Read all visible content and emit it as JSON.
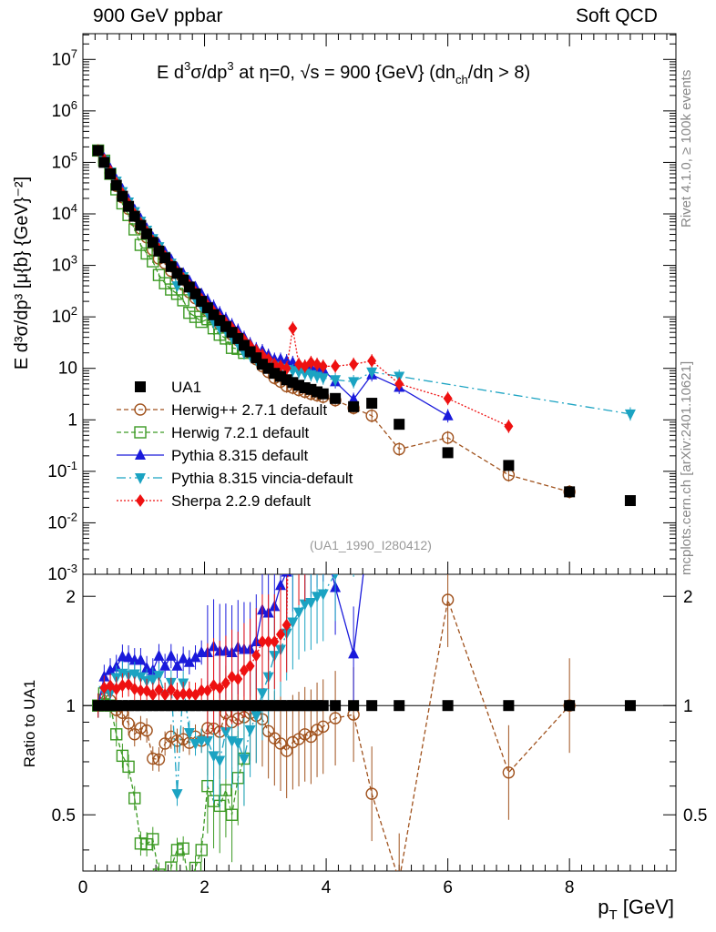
{
  "header": {
    "left": "900 GeV ppbar",
    "right": "Soft QCD",
    "side_rivet": "Rivet 4.1.0, ≥ 100k events",
    "side_mcplots": "mcplots.cern.ch [arXiv:2401.10621]"
  },
  "chart_data": {
    "type": "scatter",
    "title": "E  d³σ/dp³ at η=0, √s = 900 {GeV} (dn_ch/dη > 8)",
    "title_parts": {
      "prefix": "E   d",
      "sup3": "3",
      "mid": "σ/dp",
      "sup3b": "3",
      "rest": " at η=0, √s = 900 {GeV} (dn",
      "sub_ch": "ch",
      "end": "/dη > 8)"
    },
    "ylabel": "E d³σ/dp³ [μ{b} {GeV}⁻²]",
    "ratio_ylabel": "Ratio to UA1",
    "xlabel": "p_T [GeV]",
    "xlabel_main": "p",
    "xlabel_sub": "T",
    "xlabel_unit": " [GeV]",
    "watermark": "(UA1_1990_I280412)",
    "xlim": [
      0,
      9.75
    ],
    "ylim_log10": [
      -3,
      7.5
    ],
    "ratio_ylim": [
      0.35,
      2.3
    ],
    "x_ticks": [
      "0",
      "2",
      "4",
      "6",
      "8"
    ],
    "ratio_ticks": [
      "0.5",
      "1",
      "2"
    ],
    "legend": [
      {
        "name": "UA1",
        "color": "#000000",
        "marker": "square"
      },
      {
        "name": "Herwig++ 2.7.1 default",
        "color": "#a0521d",
        "marker": "circle-open"
      },
      {
        "name": "Herwig 7.2.1 default",
        "color": "#3c9a24",
        "marker": "square-open"
      },
      {
        "name": "Pythia 8.315 default",
        "color": "#1a1adb",
        "marker": "triangle-up"
      },
      {
        "name": "Pythia 8.315 vincia-default",
        "color": "#1ba3c2",
        "marker": "triangle-down"
      },
      {
        "name": "Sherpa 2.2.9 default",
        "color": "#ee1111",
        "marker": "diamond"
      }
    ],
    "series": [
      {
        "name": "UA1",
        "x": [
          0.25,
          0.35,
          0.45,
          0.55,
          0.65,
          0.75,
          0.85,
          0.95,
          1.05,
          1.15,
          1.25,
          1.35,
          1.45,
          1.55,
          1.65,
          1.75,
          1.85,
          1.95,
          2.05,
          2.15,
          2.25,
          2.35,
          2.45,
          2.55,
          2.65,
          2.75,
          2.85,
          2.95,
          3.05,
          3.15,
          3.25,
          3.35,
          3.45,
          3.55,
          3.65,
          3.75,
          3.85,
          3.95,
          4.15,
          4.45,
          4.75,
          5.2,
          6.0,
          7.0,
          8.0,
          9.0
        ],
        "y": [
          170000,
          100000,
          60000,
          36000,
          22000,
          14000,
          9000,
          6000,
          4100,
          2800,
          1900,
          1400,
          950,
          700,
          520,
          380,
          280,
          200,
          150,
          110,
          85,
          65,
          50,
          38,
          28,
          21,
          16,
          12,
          10,
          8,
          7,
          6,
          5.3,
          4.7,
          4.2,
          3.9,
          3.5,
          3.2,
          2.6,
          1.8,
          2.1,
          0.82,
          0.23,
          0.13,
          0.04,
          0.027
        ]
      },
      {
        "name": "Herwig++ 2.7.1 default",
        "x": [
          0.25,
          0.35,
          0.45,
          0.55,
          0.65,
          0.75,
          0.85,
          0.95,
          1.05,
          1.15,
          1.25,
          1.35,
          1.45,
          1.55,
          1.65,
          1.75,
          1.85,
          1.95,
          2.05,
          2.15,
          2.25,
          2.35,
          2.45,
          2.55,
          2.65,
          2.75,
          2.85,
          2.95,
          3.05,
          3.15,
          3.25,
          3.35,
          3.45,
          3.55,
          3.65,
          3.75,
          3.85,
          3.95,
          4.15,
          4.45,
          4.75,
          5.2,
          6.0,
          7.0,
          8.0
        ],
        "y": [
          170000,
          105000,
          62000,
          35000,
          21000,
          12500,
          7500,
          5200,
          3500,
          2000,
          1350,
          1100,
          780,
          560,
          420,
          300,
          230,
          160,
          130,
          95,
          72,
          62,
          45,
          35,
          26,
          20,
          15,
          11,
          8.5,
          6.5,
          5.5,
          4.5,
          4.2,
          3.8,
          3.5,
          3.2,
          3.0,
          2.8,
          2.4,
          1.7,
          1.2,
          0.27,
          0.45,
          0.085,
          0.04
        ]
      },
      {
        "name": "Herwig 7.2.1 default",
        "x": [
          0.25,
          0.35,
          0.45,
          0.55,
          0.65,
          0.75,
          0.85,
          0.95,
          1.05,
          1.15,
          1.25,
          1.35,
          1.45,
          1.55,
          1.65,
          1.75,
          1.85,
          1.95,
          2.05,
          2.15,
          2.25,
          2.35,
          2.45,
          2.55,
          2.65
        ],
        "y": [
          170000,
          108000,
          60000,
          30000,
          16000,
          9500,
          5000,
          2500,
          1700,
          1200,
          650,
          450,
          340,
          280,
          210,
          120,
          100,
          80,
          90,
          60,
          45,
          38,
          25,
          24,
          20
        ]
      },
      {
        "name": "Pythia 8.315 default",
        "x": [
          0.25,
          0.35,
          0.45,
          0.55,
          0.65,
          0.75,
          0.85,
          0.95,
          1.05,
          1.15,
          1.25,
          1.35,
          1.45,
          1.55,
          1.65,
          1.75,
          1.85,
          1.95,
          2.05,
          2.15,
          2.25,
          2.35,
          2.45,
          2.55,
          2.65,
          2.75,
          2.85,
          2.95,
          3.05,
          3.15,
          3.25,
          3.35,
          3.45,
          3.55,
          3.65,
          3.75,
          3.85,
          3.95,
          4.15,
          4.45,
          4.75,
          5.2,
          6.0
        ],
        "y": [
          170000,
          120000,
          75000,
          46000,
          30000,
          19000,
          12000,
          8000,
          5200,
          3500,
          2600,
          1800,
          1300,
          900,
          700,
          500,
          380,
          280,
          210,
          160,
          120,
          92,
          70,
          55,
          40,
          30,
          24,
          22,
          18,
          15,
          15,
          14,
          13,
          12,
          11,
          10.5,
          10,
          9.5,
          5.5,
          2.5,
          7.5,
          4.3,
          1.2
        ]
      },
      {
        "name": "Pythia 8.315 vincia-default",
        "x": [
          0.25,
          0.35,
          0.45,
          0.55,
          0.65,
          0.75,
          0.85,
          0.95,
          1.05,
          1.15,
          1.25,
          1.35,
          1.45,
          1.55,
          1.65,
          1.75,
          1.85,
          1.95,
          2.05,
          2.15,
          2.25,
          2.35,
          2.45,
          2.55,
          2.65,
          2.75,
          2.85,
          2.95,
          3.05,
          3.15,
          3.25,
          3.35,
          3.45,
          3.55,
          3.65,
          3.75,
          3.85,
          3.95,
          4.15,
          4.45,
          4.75,
          5.2,
          9.0
        ],
        "y": [
          170000,
          110000,
          65000,
          43000,
          27000,
          17000,
          11000,
          7200,
          4800,
          3300,
          2300,
          1500,
          1100,
          400,
          600,
          320,
          220,
          160,
          120,
          80,
          60,
          55,
          40,
          30,
          20,
          18,
          15,
          13,
          12,
          11,
          10,
          9.5,
          9,
          8.5,
          8,
          7.5,
          7,
          6.5,
          6,
          5.5,
          8.5,
          7,
          1.3
        ]
      },
      {
        "name": "Sherpa 2.2.9 default",
        "x": [
          0.25,
          0.35,
          0.45,
          0.55,
          0.65,
          0.75,
          0.85,
          0.95,
          1.05,
          1.15,
          1.25,
          1.35,
          1.45,
          1.55,
          1.65,
          1.75,
          1.85,
          1.95,
          2.05,
          2.15,
          2.25,
          2.35,
          2.45,
          2.55,
          2.65,
          2.75,
          2.85,
          2.95,
          3.05,
          3.15,
          3.25,
          3.35,
          3.45,
          3.55,
          3.65,
          3.75,
          3.85,
          3.95,
          4.15,
          4.45,
          4.75,
          5.2,
          6.0,
          7.0
        ],
        "y": [
          170000,
          112000,
          68000,
          40000,
          25000,
          16000,
          10000,
          6600,
          4500,
          3000,
          2100,
          1500,
          1050,
          750,
          560,
          410,
          300,
          220,
          165,
          125,
          95,
          75,
          60,
          45,
          35,
          27,
          22,
          18,
          15,
          12,
          11,
          10,
          60,
          12,
          11,
          13,
          12,
          11,
          11,
          12,
          14,
          5,
          2.6,
          0.75
        ]
      }
    ]
  }
}
